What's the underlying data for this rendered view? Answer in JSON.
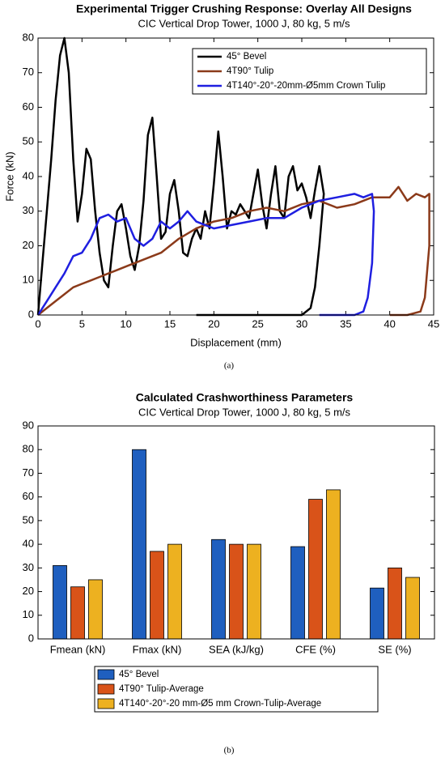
{
  "chart_data": [
    {
      "type": "line",
      "title": "Experimental Trigger Crushing Response: Overlay All Designs",
      "subtitle": "CIC Vertical Drop Tower, 1000 J, 80 kg, 5 m/s",
      "xlabel": "Displacement (mm)",
      "ylabel": "Force (kN)",
      "caption": "(a)",
      "xlim": [
        0,
        45
      ],
      "xticks": [
        0,
        5,
        10,
        15,
        20,
        25,
        30,
        35,
        40,
        45
      ],
      "ylim": [
        0,
        80
      ],
      "yticks": [
        0,
        10,
        20,
        30,
        40,
        50,
        60,
        70,
        80
      ],
      "legend": "northeast",
      "series": [
        {
          "name": "45° Bevel",
          "color": "#000000",
          "x": [
            0,
            0.5,
            1,
            1.5,
            2,
            2.5,
            3,
            3.5,
            4,
            4.5,
            5,
            5.5,
            6,
            6.5,
            7,
            7.5,
            8,
            8.5,
            9,
            9.5,
            10,
            10.5,
            11,
            11.5,
            12,
            12.5,
            13,
            13.5,
            14,
            14.5,
            15,
            15.5,
            16,
            16.5,
            17,
            17.5,
            18,
            18.5,
            19,
            19.5,
            20,
            20.5,
            21,
            21.5,
            22,
            22.5,
            23,
            23.5,
            24,
            24.5,
            25,
            25.5,
            26,
            26.5,
            27,
            27.5,
            28,
            28.5,
            29,
            29.5,
            30,
            30.5,
            31,
            31.5,
            32,
            32.5,
            32,
            31.5,
            31,
            30,
            25,
            20,
            18
          ],
          "values": [
            0,
            15,
            30,
            45,
            62,
            75,
            80,
            70,
            45,
            27,
            35,
            48,
            45,
            30,
            18,
            10,
            8,
            20,
            30,
            32,
            25,
            17,
            13,
            20,
            33,
            52,
            57,
            40,
            22,
            24,
            35,
            39,
            30,
            18,
            17,
            22,
            25,
            22,
            30,
            25,
            38,
            53,
            40,
            25,
            30,
            29,
            32,
            30,
            28,
            35,
            42,
            32,
            25,
            35,
            43,
            30,
            28,
            40,
            43,
            36,
            38,
            34,
            28,
            36,
            43,
            35,
            20,
            8,
            2,
            0,
            0,
            0,
            0
          ]
        },
        {
          "name": "4T90° Tulip",
          "color": "#8b3a1a",
          "x": [
            0,
            1,
            2,
            3,
            4,
            5,
            6,
            7,
            8,
            9,
            10,
            12,
            14,
            16,
            18,
            20,
            22,
            24,
            26,
            28,
            30,
            32,
            34,
            36,
            38,
            40,
            41,
            42,
            43,
            44,
            44.5,
            44.5,
            44,
            43.5,
            42,
            40
          ],
          "values": [
            0,
            2,
            4,
            6,
            8,
            9,
            10,
            11,
            12,
            13,
            14,
            16,
            18,
            22,
            25,
            27,
            28,
            30,
            31,
            30,
            32,
            33,
            31,
            32,
            34,
            34,
            37,
            33,
            35,
            34,
            35,
            20,
            5,
            1,
            0,
            0
          ]
        },
        {
          "name": "4T140°-20°-20mm-Ø5mm Crown Tulip",
          "color": "#1f1fe0",
          "x": [
            0,
            1,
            2,
            3,
            4,
            5,
            6,
            7,
            8,
            9,
            10,
            11,
            12,
            13,
            14,
            15,
            16,
            17,
            18,
            19,
            20,
            22,
            24,
            26,
            28,
            30,
            32,
            34,
            36,
            37,
            38,
            38.2,
            38,
            37.5,
            37,
            36,
            34,
            32
          ],
          "values": [
            0,
            4,
            8,
            12,
            17,
            18,
            22,
            28,
            29,
            27,
            28,
            22,
            20,
            22,
            27,
            25,
            27,
            30,
            27,
            26,
            25,
            26,
            27,
            28,
            28,
            31,
            33,
            34,
            35,
            34,
            35,
            30,
            15,
            5,
            1,
            0,
            0,
            0
          ]
        }
      ]
    },
    {
      "type": "bar",
      "title": "Calculated Crashworthiness Parameters",
      "subtitle": "CIC Vertical Drop Tower, 1000 J, 80 kg, 5 m/s",
      "caption": "(b)",
      "categories": [
        "Fmean (kN)",
        "Fmax (kN)",
        "SEA (kJ/kg)",
        "CFE (%)",
        "SE (%)"
      ],
      "ylim": [
        0,
        90
      ],
      "yticks": [
        0,
        10,
        20,
        30,
        40,
        50,
        60,
        70,
        80,
        90
      ],
      "legend": "below",
      "series": [
        {
          "name": "45° Bevel",
          "color": "#1f5fbf",
          "values": [
            31,
            80,
            42,
            39,
            21.5
          ]
        },
        {
          "name": "4T90° Tulip-Average",
          "color": "#d95319",
          "values": [
            22,
            37,
            40,
            59,
            30
          ]
        },
        {
          "name": "4T140°-20°-20 mm-Ø5 mm Crown-Tulip-Average",
          "color": "#edb120",
          "values": [
            25,
            40,
            40,
            63,
            26
          ]
        }
      ]
    }
  ]
}
